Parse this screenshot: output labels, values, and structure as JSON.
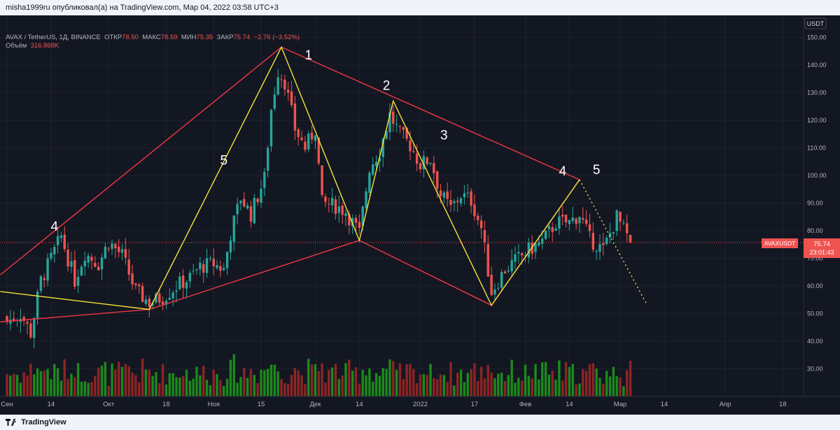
{
  "header": {
    "caption": "misha1999ru опубликовал(а) на TradingView.com, Мар 04, 2022 03:58 UTC+3"
  },
  "legend": {
    "symbol": "AVAX / TetherUS, 1Д, BINANCE",
    "open_label": "ОТКР",
    "open": "78.50",
    "high_label": "МАКС",
    "high": "78.59",
    "low_label": "МИН",
    "low": "75.35",
    "close_label": "ЗАКР",
    "close": "75.74",
    "change": "−2.76 (−3.52%)",
    "volume_label": "Объём",
    "volume": "316.868K"
  },
  "price_scale": {
    "currency": "USDT",
    "ticks": [
      "150.00",
      "140.00",
      "130.00",
      "120.00",
      "110.00",
      "100.00",
      "90.00",
      "80.00",
      "70.00",
      "60.00",
      "50.00",
      "40.00",
      "30.00"
    ]
  },
  "time_axis": {
    "labels": [
      "Сен",
      "14",
      "Окт",
      "18",
      "Ноя",
      "15",
      "Дек",
      "14",
      "2022",
      "17",
      "Фев",
      "14",
      "Мар",
      "14",
      "Апр",
      "18"
    ]
  },
  "last_price": {
    "symbol": "AVAXUSDT",
    "price": "75.74",
    "countdown": "23:01:43"
  },
  "wave_labels": [
    "4",
    "5",
    "1",
    "2",
    "3",
    "4",
    "5"
  ],
  "footer": {
    "brand": "TradingView"
  },
  "colors": {
    "up": "#26a69a",
    "down": "#ef5350",
    "vol_up": "#1b8a1b",
    "vol_down": "#8e2424",
    "red_line": "#f23645",
    "yellow_line": "#f6e33a",
    "background": "#131722"
  },
  "chart_data": {
    "type": "candlestick",
    "symbol": "AVAX / TetherUS",
    "exchange": "BINANCE",
    "interval": "1Д",
    "ylim": [
      20,
      158
    ],
    "y_scale": "linear",
    "grid": true,
    "x_range": [
      "2021-09-01",
      "2022-04-20"
    ],
    "last_candle": {
      "date": "2022-03-04",
      "open": 78.5,
      "high": 78.59,
      "low": 75.35,
      "close": 75.74
    },
    "swing_points": [
      {
        "date": "2021-09-01",
        "price": 58
      },
      {
        "date": "2021-10-13",
        "price": 51.5
      },
      {
        "date": "2021-11-21",
        "price": 146.5
      },
      {
        "date": "2021-12-14",
        "price": 76.5
      },
      {
        "date": "2021-12-24",
        "price": 127
      },
      {
        "date": "2022-01-22",
        "price": 53
      },
      {
        "date": "2022-02-17",
        "price": 98.5
      },
      {
        "date": "2022-03-09",
        "price": 53
      }
    ],
    "close_path": [
      [
        "2021-09-01",
        47
      ],
      [
        "2021-09-05",
        50
      ],
      [
        "2021-09-08",
        43
      ],
      [
        "2021-09-11",
        62
      ],
      [
        "2021-09-14",
        70
      ],
      [
        "2021-09-17",
        78
      ],
      [
        "2021-09-21",
        62
      ],
      [
        "2021-09-24",
        72
      ],
      [
        "2021-09-28",
        68
      ],
      [
        "2021-10-01",
        76
      ],
      [
        "2021-10-05",
        71
      ],
      [
        "2021-10-09",
        58
      ],
      [
        "2021-10-13",
        54
      ],
      [
        "2021-10-17",
        56
      ],
      [
        "2021-10-21",
        60
      ],
      [
        "2021-10-25",
        63
      ],
      [
        "2021-10-28",
        67
      ],
      [
        "2021-11-01",
        68
      ],
      [
        "2021-11-04",
        66
      ],
      [
        "2021-11-06",
        79
      ],
      [
        "2021-11-09",
        92
      ],
      [
        "2021-11-12",
        86
      ],
      [
        "2021-11-16",
        99
      ],
      [
        "2021-11-18",
        124
      ],
      [
        "2021-11-20",
        138
      ],
      [
        "2021-11-22",
        134
      ],
      [
        "2021-11-25",
        117
      ],
      [
        "2021-11-28",
        110
      ],
      [
        "2021-12-01",
        117
      ],
      [
        "2021-12-03",
        90
      ],
      [
        "2021-12-07",
        89
      ],
      [
        "2021-12-10",
        87
      ],
      [
        "2021-12-14",
        79
      ],
      [
        "2021-12-17",
        103
      ],
      [
        "2021-12-20",
        109
      ],
      [
        "2021-12-23",
        122
      ],
      [
        "2021-12-26",
        115
      ],
      [
        "2021-12-29",
        111
      ],
      [
        "2022-01-01",
        104
      ],
      [
        "2022-01-04",
        106
      ],
      [
        "2022-01-07",
        93
      ],
      [
        "2022-01-10",
        88
      ],
      [
        "2022-01-13",
        93
      ],
      [
        "2022-01-16",
        91
      ],
      [
        "2022-01-19",
        81
      ],
      [
        "2022-01-22",
        58
      ],
      [
        "2022-01-26",
        66
      ],
      [
        "2022-01-29",
        69
      ],
      [
        "2022-02-02",
        73
      ],
      [
        "2022-02-06",
        76
      ],
      [
        "2022-02-10",
        83
      ],
      [
        "2022-02-14",
        83
      ],
      [
        "2022-02-17",
        86
      ],
      [
        "2022-02-20",
        77
      ],
      [
        "2022-02-24",
        73
      ],
      [
        "2022-02-28",
        85
      ],
      [
        "2022-03-04",
        75.74
      ]
    ],
    "drawings": [
      {
        "color": "red",
        "points": [
          [
            "2021-08-30",
            64
          ],
          [
            "2021-11-21",
            146.5
          ],
          [
            "2022-02-17",
            98.5
          ]
        ]
      },
      {
        "color": "red",
        "points": [
          [
            "2021-10-13",
            51.5
          ],
          [
            "2021-12-14",
            76.5
          ],
          [
            "2022-01-22",
            53
          ],
          [
            "2022-02-17",
            98.5
          ]
        ]
      },
      {
        "color": "red",
        "points": [
          [
            "2021-08-30",
            47
          ],
          [
            "2021-10-13",
            51.5
          ]
        ]
      },
      {
        "color": "yellow",
        "points": [
          [
            "2021-08-30",
            58
          ],
          [
            "2021-10-13",
            51.5
          ],
          [
            "2021-11-21",
            146.5
          ],
          [
            "2021-12-14",
            76.5
          ],
          [
            "2021-12-24",
            127
          ],
          [
            "2022-01-22",
            53
          ],
          [
            "2022-02-17",
            98.5
          ]
        ]
      },
      {
        "color": "yellow",
        "style": "dotted",
        "points": [
          [
            "2022-02-17",
            98.5
          ],
          [
            "2022-03-09",
            53
          ]
        ]
      }
    ],
    "annotations": [
      {
        "text": "4",
        "date": "2021-09-15",
        "price": 80
      },
      {
        "text": "5",
        "date": "2021-11-04",
        "price": 104
      },
      {
        "text": "1",
        "date": "2021-11-29",
        "price": 142
      },
      {
        "text": "2",
        "date": "2021-12-22",
        "price": 131
      },
      {
        "text": "3",
        "date": "2022-01-08",
        "price": 113
      },
      {
        "text": "4",
        "date": "2022-02-12",
        "price": 100
      },
      {
        "text": "5",
        "date": "2022-02-22",
        "price": 100.5
      }
    ]
  }
}
